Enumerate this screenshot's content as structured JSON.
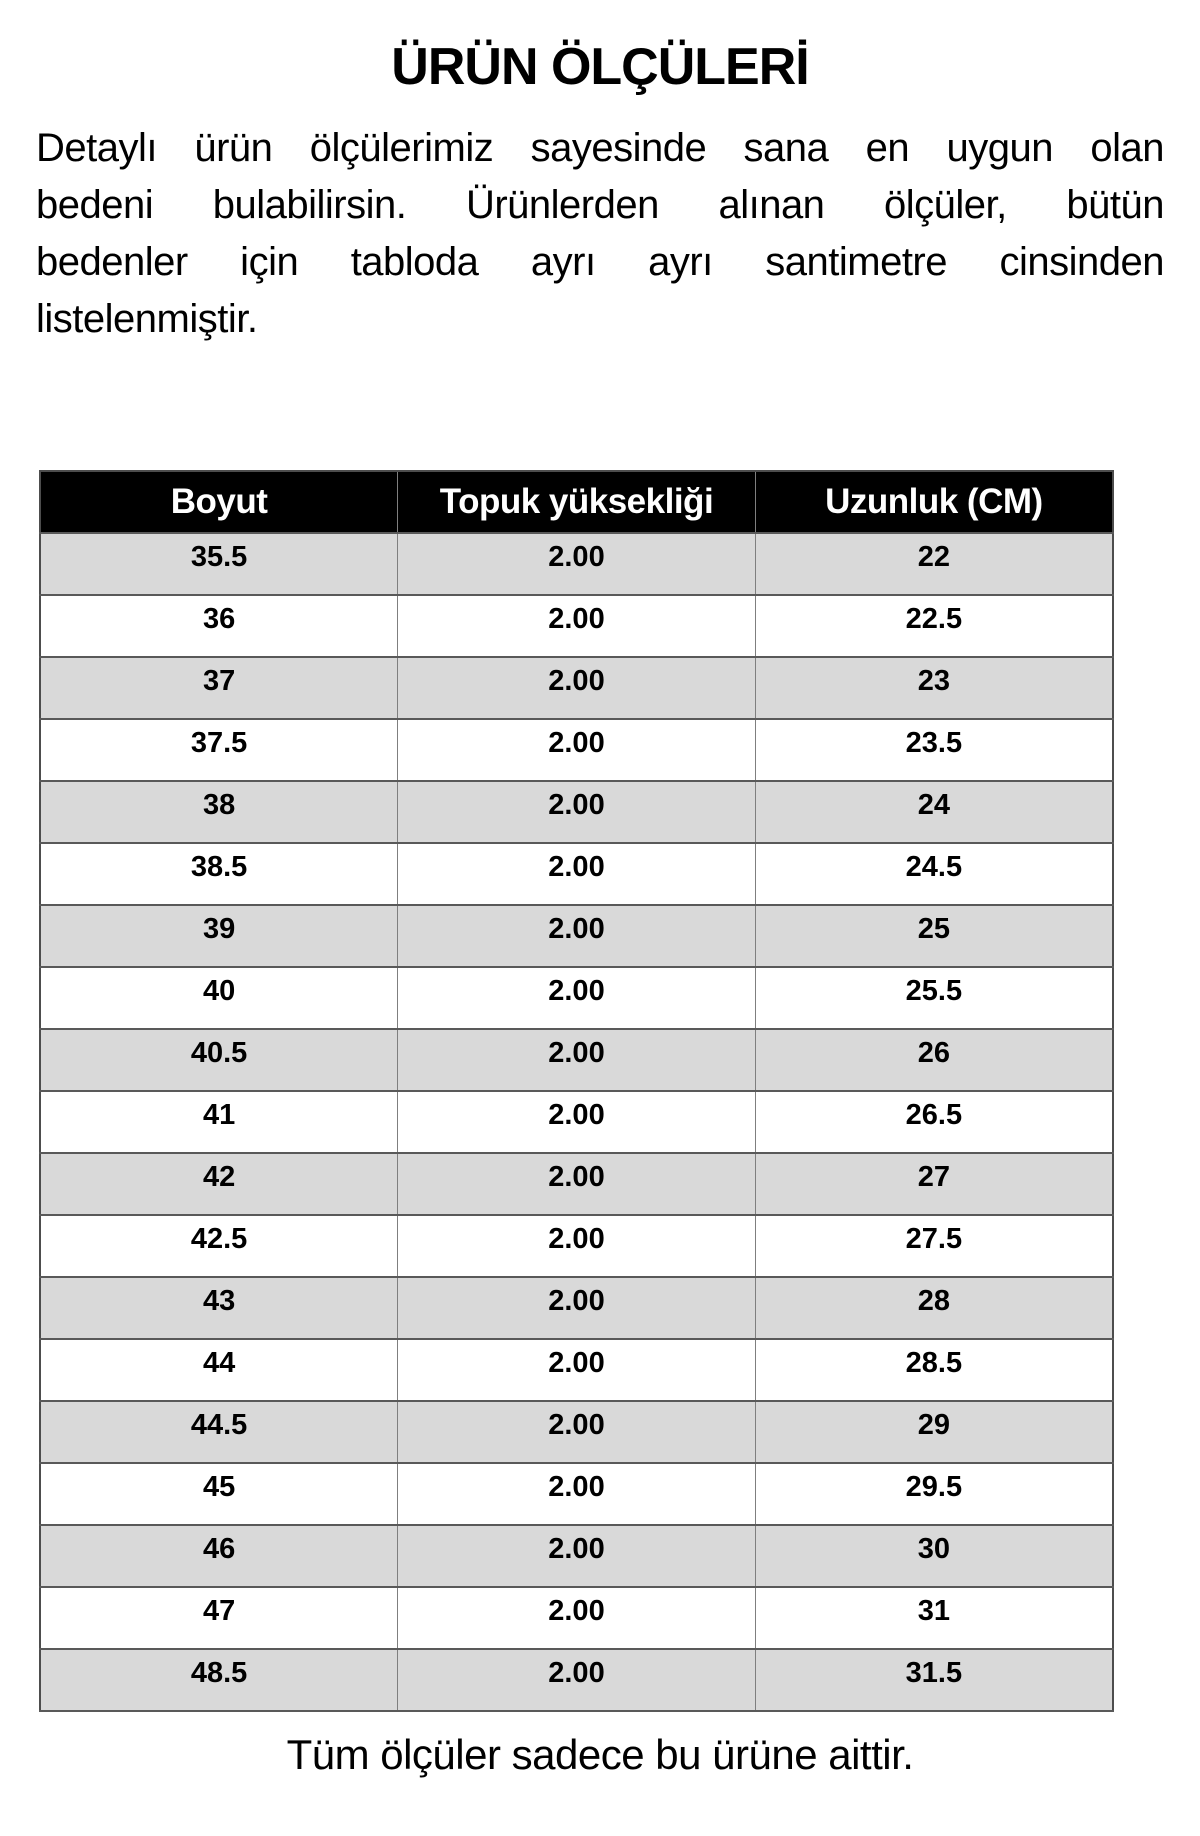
{
  "page": {
    "title": "ÜRÜN ÖLÇÜLERİ",
    "footer": "Tüm ölçüler sadece bu ürüne aittir."
  },
  "intro": {
    "full_text": "Detaylı ürün ölçülerimiz sayesinde sana en uygun olan bedeni bulabilirsin. Ürünlerden alınan ölçüler, bütün bedenler için tabloda ayrı ayrı santimetre cinsinden listelenmiştir.",
    "lines": [
      "Detaylı ürün ölçülerimiz sayesinde sana en uygun olan",
      "bedeni bulabilirsin. Ürünlerden alınan ölçüler, bütün",
      "bedenler için tabloda ayrı ayrı santimetre cinsinden",
      "listelenmiştir."
    ]
  },
  "table": {
    "headers": [
      "Boyut",
      "Topuk yüksekliği",
      "Uzunluk (CM)"
    ],
    "rows": [
      [
        "35.5",
        "2.00",
        "22"
      ],
      [
        "36",
        "2.00",
        "22.5"
      ],
      [
        "37",
        "2.00",
        "23"
      ],
      [
        "37.5",
        "2.00",
        "23.5"
      ],
      [
        "38",
        "2.00",
        "24"
      ],
      [
        "38.5",
        "2.00",
        "24.5"
      ],
      [
        "39",
        "2.00",
        "25"
      ],
      [
        "40",
        "2.00",
        "25.5"
      ],
      [
        "40.5",
        "2.00",
        "26"
      ],
      [
        "41",
        "2.00",
        "26.5"
      ],
      [
        "42",
        "2.00",
        "27"
      ],
      [
        "42.5",
        "2.00",
        "27.5"
      ],
      [
        "43",
        "2.00",
        "28"
      ],
      [
        "44",
        "2.00",
        "28.5"
      ],
      [
        "44.5",
        "2.00",
        "29"
      ],
      [
        "45",
        "2.00",
        "29.5"
      ],
      [
        "46",
        "2.00",
        "30"
      ],
      [
        "47",
        "2.00",
        "31"
      ],
      [
        "48.5",
        "2.00",
        "31.5"
      ]
    ]
  },
  "colors": {
    "header_bg": "#000000",
    "header_text": "#ffffff",
    "row_odd_bg": "#d9d9d9",
    "row_even_bg": "#ffffff",
    "border": "#7f7f7f",
    "text": "#000000"
  }
}
